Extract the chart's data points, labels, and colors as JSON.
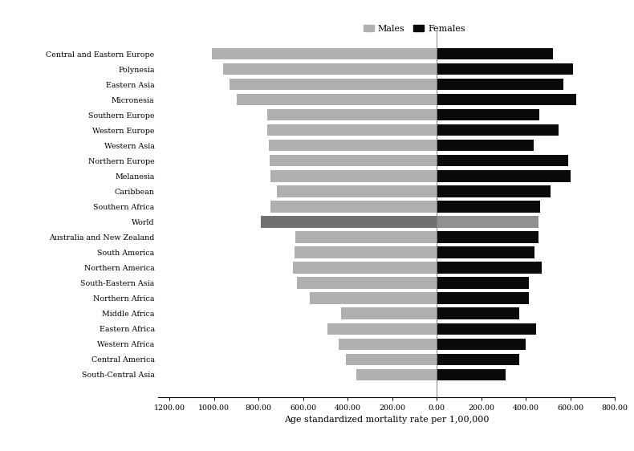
{
  "regions": [
    "Central and Eastern Europe",
    "Polynesia",
    "Eastern Asia",
    "Micronesia",
    "Southern Europe",
    "Western Europe",
    "Western Asia",
    "Northern Europe",
    "Melanesia",
    "Caribbean",
    "Southern Africa",
    "World",
    "Australia and New Zealand",
    "South America",
    "Northern America",
    "South-Eastern Asia",
    "Northern Africa",
    "Middle Africa",
    "Eastern Africa",
    "Western Africa",
    "Central America",
    "South-Central Asia"
  ],
  "males": [
    1010,
    960,
    930,
    900,
    760,
    760,
    755,
    750,
    748,
    720,
    748,
    790,
    635,
    640,
    645,
    630,
    570,
    430,
    490,
    440,
    410,
    360
  ],
  "females": [
    520,
    610,
    570,
    625,
    460,
    545,
    435,
    590,
    600,
    510,
    465,
    455,
    455,
    440,
    470,
    415,
    415,
    370,
    445,
    400,
    370,
    310
  ],
  "male_color": "#b0b0b0",
  "female_color": "#0a0a0a",
  "world_male_color": "#707070",
  "world_female_color": "#909090",
  "xlabel": "Age standardized mortality rate per 1,00,000",
  "legend_male": "Males",
  "legend_female": "Females",
  "xlim_left": -1250,
  "xlim_right": 800,
  "xticks": [
    -1200,
    -1000,
    -800,
    -600,
    -400,
    -200,
    0,
    200,
    400,
    600,
    800
  ],
  "xtick_labels": [
    "1200.00",
    "1000.00",
    "800.00",
    "600.00",
    "400.00",
    "200.00",
    "0.00",
    "200.00",
    "400.00",
    "600.00",
    "800.00"
  ]
}
